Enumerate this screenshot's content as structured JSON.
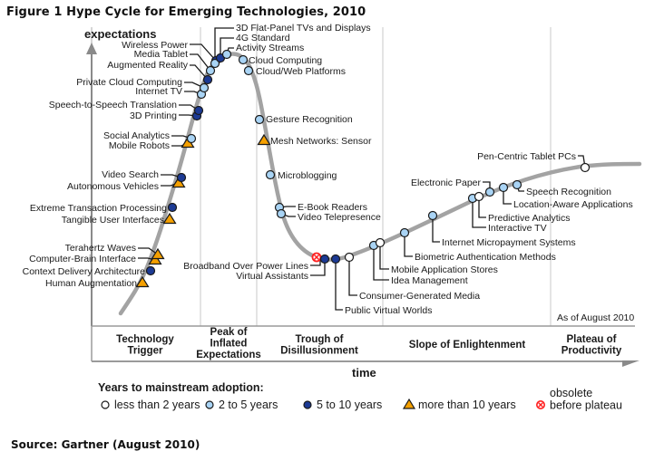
{
  "title": "Figure 1 Hype Cycle for Emerging Technologies, 2010",
  "source": "Source: Gartner (August 2010)",
  "chart_data": {
    "type": "hype-cycle",
    "title": "Figure 1 Hype Cycle for Emerging Technologies, 2010",
    "ylabel": "expectations",
    "xlabel": "time",
    "as_of": "As of August 2010",
    "phases": [
      {
        "label": [
          "Technology",
          "Trigger"
        ]
      },
      {
        "label": [
          "Peak of",
          "Inflated",
          "Expectations"
        ]
      },
      {
        "label": [
          "Trough of",
          "Disillusionment"
        ]
      },
      {
        "label": [
          "Slope of Enlightenment"
        ]
      },
      {
        "label": [
          "Plateau of",
          "Productivity"
        ]
      }
    ],
    "legend": {
      "title": "Years to mainstream adoption:",
      "items": [
        {
          "key": "lt2",
          "label": "less than 2 years",
          "color": "#ffffff"
        },
        {
          "key": "2to5",
          "label": "2 to 5 years",
          "color": "#a9d4f5"
        },
        {
          "key": "5to10",
          "label": "5 to 10 years",
          "color": "#1c3a94"
        },
        {
          "key": "gt10",
          "label": "more than 10 years",
          "color": "#f5a000"
        },
        {
          "key": "obsolete",
          "label": [
            "obsolete",
            "before plateau"
          ],
          "color": "#ff2020"
        }
      ]
    },
    "technologies": [
      {
        "name": "Human Augmentation",
        "phase": "Technology Trigger",
        "adoption": "gt10"
      },
      {
        "name": "Context Delivery Architecture",
        "phase": "Technology Trigger",
        "adoption": "5to10"
      },
      {
        "name": "Computer-Brain Interface",
        "phase": "Technology Trigger",
        "adoption": "gt10"
      },
      {
        "name": "Terahertz Waves",
        "phase": "Technology Trigger",
        "adoption": "gt10"
      },
      {
        "name": "Tangible User Interfaces",
        "phase": "Technology Trigger",
        "adoption": "gt10"
      },
      {
        "name": "Extreme Transaction Processing",
        "phase": "Technology Trigger",
        "adoption": "5to10"
      },
      {
        "name": "Autonomous Vehicles",
        "phase": "Technology Trigger",
        "adoption": "gt10"
      },
      {
        "name": "Video Search",
        "phase": "Technology Trigger",
        "adoption": "5to10"
      },
      {
        "name": "Mobile Robots",
        "phase": "Technology Trigger",
        "adoption": "gt10"
      },
      {
        "name": "Social Analytics",
        "phase": "Technology Trigger",
        "adoption": "2to5"
      },
      {
        "name": "3D Printing",
        "phase": "Technology Trigger",
        "adoption": "5to10"
      },
      {
        "name": "Speech-to-Speech Translation",
        "phase": "Technology Trigger",
        "adoption": "5to10"
      },
      {
        "name": "Internet TV",
        "phase": "Technology Trigger",
        "adoption": "2to5"
      },
      {
        "name": "Private Cloud Computing",
        "phase": "Technology Trigger",
        "adoption": "2to5"
      },
      {
        "name": "Augmented Reality",
        "phase": "Technology Trigger",
        "adoption": "5to10"
      },
      {
        "name": "Media Tablet",
        "phase": "Technology Trigger",
        "adoption": "2to5"
      },
      {
        "name": "Wireless Power",
        "phase": "Peak of Inflated Expectations",
        "adoption": "5to10"
      },
      {
        "name": "3D Flat-Panel TVs and Displays",
        "phase": "Peak of Inflated Expectations",
        "adoption": "2to5"
      },
      {
        "name": "4G Standard",
        "phase": "Peak of Inflated Expectations",
        "adoption": "5to10"
      },
      {
        "name": "Activity Streams",
        "phase": "Peak of Inflated Expectations",
        "adoption": "2to5"
      },
      {
        "name": "Cloud Computing",
        "phase": "Peak of Inflated Expectations",
        "adoption": "2to5"
      },
      {
        "name": "Cloud/Web Platforms",
        "phase": "Peak of Inflated Expectations",
        "adoption": "2to5"
      },
      {
        "name": "Gesture Recognition",
        "phase": "Trough of Disillusionment",
        "adoption": "2to5"
      },
      {
        "name": "Mesh Networks: Sensor",
        "phase": "Trough of Disillusionment",
        "adoption": "gt10"
      },
      {
        "name": "Microblogging",
        "phase": "Trough of Disillusionment",
        "adoption": "2to5"
      },
      {
        "name": "E-Book Readers",
        "phase": "Trough of Disillusionment",
        "adoption": "2to5"
      },
      {
        "name": "Video Telepresence",
        "phase": "Trough of Disillusionment",
        "adoption": "2to5"
      },
      {
        "name": "Broadband Over Power Lines",
        "phase": "Trough of Disillusionment",
        "adoption": "obsolete"
      },
      {
        "name": "Virtual Assistants",
        "phase": "Trough of Disillusionment",
        "adoption": "5to10"
      },
      {
        "name": "Public Virtual Worlds",
        "phase": "Trough of Disillusionment",
        "adoption": "5to10"
      },
      {
        "name": "Consumer-Generated Media",
        "phase": "Trough of Disillusionment",
        "adoption": "lt2"
      },
      {
        "name": "Idea Management",
        "phase": "Slope of Enlightenment",
        "adoption": "2to5"
      },
      {
        "name": "Mobile Application Stores",
        "phase": "Slope of Enlightenment",
        "adoption": "lt2"
      },
      {
        "name": "Biometric Authentication Methods",
        "phase": "Slope of Enlightenment",
        "adoption": "2to5"
      },
      {
        "name": "Internet Micropayment Systems",
        "phase": "Slope of Enlightenment",
        "adoption": "2to5"
      },
      {
        "name": "Interactive TV",
        "phase": "Slope of Enlightenment",
        "adoption": "2to5"
      },
      {
        "name": "Predictive Analytics",
        "phase": "Slope of Enlightenment",
        "adoption": "lt2"
      },
      {
        "name": "Electronic Paper",
        "phase": "Slope of Enlightenment",
        "adoption": "2to5"
      },
      {
        "name": "Location-Aware Applications",
        "phase": "Slope of Enlightenment",
        "adoption": "2to5"
      },
      {
        "name": "Speech Recognition",
        "phase": "Slope of Enlightenment",
        "adoption": "2to5"
      },
      {
        "name": "Pen-Centric Tablet PCs",
        "phase": "Slope of Enlightenment",
        "adoption": "lt2"
      }
    ]
  }
}
